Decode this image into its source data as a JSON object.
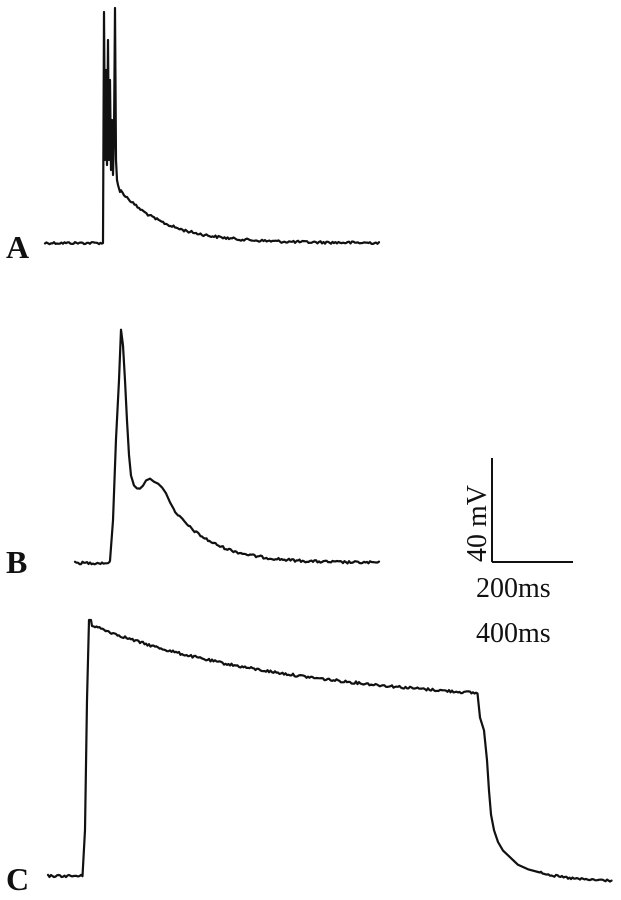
{
  "panels": [
    {
      "letter": "A"
    },
    {
      "letter": "B"
    },
    {
      "letter": "C"
    }
  ],
  "scale_bar": {
    "voltage_label": "40 mV",
    "time_label_1": "200ms",
    "time_label_2": "400ms"
  }
}
